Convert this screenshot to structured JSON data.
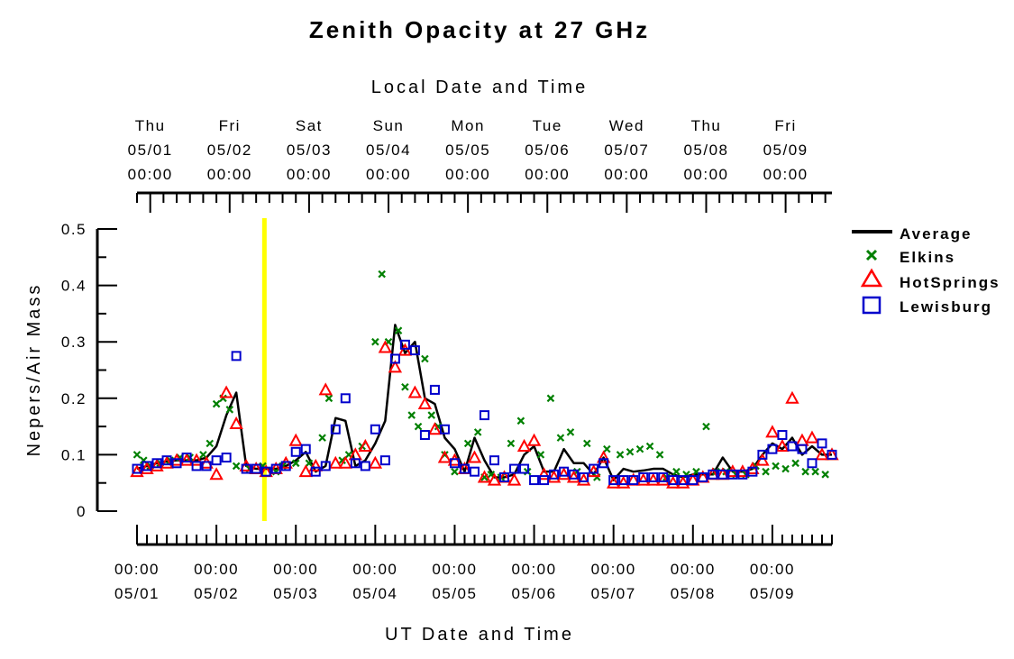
{
  "chart_data": {
    "type": "line",
    "title": "Zenith Opacity at 27 GHz",
    "top_axis_label": "Local Date and Time",
    "xlabel": "UT Date and Time",
    "ylabel": "Nepers/Air Mass",
    "ylim": [
      0,
      0.5
    ],
    "y_ticks": [
      "0",
      "0.1",
      "0.2",
      "0.3",
      "0.4",
      "0.5"
    ],
    "x_range_hours": [
      0,
      210
    ],
    "top_ticks": [
      {
        "hour": 4,
        "day": "Thu",
        "date": "05/01",
        "time": "00:00"
      },
      {
        "hour": 28,
        "day": "Fri",
        "date": "05/02",
        "time": "00:00"
      },
      {
        "hour": 52,
        "day": "Sat",
        "date": "05/03",
        "time": "00:00"
      },
      {
        "hour": 76,
        "day": "Sun",
        "date": "05/04",
        "time": "00:00"
      },
      {
        "hour": 100,
        "day": "Mon",
        "date": "05/05",
        "time": "00:00"
      },
      {
        "hour": 124,
        "day": "Tue",
        "date": "05/06",
        "time": "00:00"
      },
      {
        "hour": 148,
        "day": "Wed",
        "date": "05/07",
        "time": "00:00"
      },
      {
        "hour": 172,
        "day": "Thu",
        "date": "05/08",
        "time": "00:00"
      },
      {
        "hour": 196,
        "day": "Fri",
        "date": "05/09",
        "time": "00:00"
      }
    ],
    "bottom_ticks": [
      {
        "hour": 0,
        "time": "00:00",
        "date": "05/01"
      },
      {
        "hour": 24,
        "time": "00:00",
        "date": "05/02"
      },
      {
        "hour": 48,
        "time": "00:00",
        "date": "05/03"
      },
      {
        "hour": 72,
        "time": "00:00",
        "date": "05/04"
      },
      {
        "hour": 96,
        "time": "00:00",
        "date": "05/05"
      },
      {
        "hour": 120,
        "time": "00:00",
        "date": "05/06"
      },
      {
        "hour": 144,
        "time": "00:00",
        "date": "05/07"
      },
      {
        "hour": 168,
        "time": "00:00",
        "date": "05/08"
      },
      {
        "hour": 192,
        "time": "00:00",
        "date": "05/09"
      }
    ],
    "marker_line_hour": 38.5,
    "legend_position": "right",
    "colors": {
      "average": "#000000",
      "elkins": "#008000",
      "hotsprings": "#ff0000",
      "lewisburg": "#0000cc",
      "marker": "#ffff00"
    },
    "series": [
      {
        "name": "Average",
        "style": "line",
        "x": [
          0,
          3,
          6,
          9,
          12,
          15,
          18,
          21,
          24,
          27,
          30,
          33,
          36,
          39,
          42,
          45,
          48,
          51,
          54,
          57,
          60,
          63,
          66,
          69,
          72,
          75,
          78,
          81,
          84,
          87,
          90,
          93,
          96,
          99,
          102,
          105,
          108,
          111,
          114,
          117,
          120,
          123,
          126,
          129,
          132,
          135,
          138,
          141,
          144,
          147,
          150,
          153,
          156,
          159,
          162,
          165,
          168,
          171,
          174,
          177,
          180,
          183,
          186,
          189,
          192,
          195,
          198,
          201,
          204,
          207,
          210
        ],
        "y": [
          0.075,
          0.08,
          0.085,
          0.088,
          0.09,
          0.09,
          0.09,
          0.095,
          0.115,
          0.17,
          0.21,
          0.08,
          0.075,
          0.075,
          0.075,
          0.08,
          0.09,
          0.105,
          0.07,
          0.08,
          0.165,
          0.16,
          0.08,
          0.09,
          0.12,
          0.16,
          0.33,
          0.28,
          0.3,
          0.2,
          0.19,
          0.13,
          0.11,
          0.07,
          0.13,
          0.09,
          0.06,
          0.06,
          0.065,
          0.1,
          0.115,
          0.07,
          0.07,
          0.11,
          0.085,
          0.085,
          0.065,
          0.095,
          0.055,
          0.075,
          0.07,
          0.072,
          0.075,
          0.075,
          0.065,
          0.06,
          0.065,
          0.065,
          0.065,
          0.095,
          0.07,
          0.07,
          0.075,
          0.1,
          0.12,
          0.11,
          0.13,
          0.1,
          0.115,
          0.1,
          0.1
        ]
      },
      {
        "name": "Elkins",
        "style": "x",
        "x": [
          0,
          2,
          4,
          7,
          10,
          13,
          16,
          20,
          22,
          24,
          26,
          28,
          30,
          34,
          38,
          42,
          44,
          48,
          52,
          56,
          58,
          62,
          64,
          68,
          72,
          74,
          76,
          79,
          81,
          83,
          85,
          87,
          89,
          91,
          93,
          96,
          100,
          103,
          105,
          107,
          110,
          113,
          116,
          118,
          122,
          125,
          128,
          131,
          133,
          136,
          139,
          142,
          146,
          149,
          152,
          155,
          158,
          160,
          163,
          166,
          169,
          172,
          175,
          178,
          181,
          184,
          187,
          190,
          193,
          196,
          199,
          202,
          205,
          208
        ],
        "y": [
          0.1,
          0.09,
          0.08,
          0.085,
          0.09,
          0.095,
          0.095,
          0.1,
          0.12,
          0.19,
          0.2,
          0.18,
          0.08,
          0.075,
          0.08,
          0.07,
          0.08,
          0.085,
          0.085,
          0.13,
          0.2,
          0.09,
          0.1,
          0.115,
          0.3,
          0.42,
          0.3,
          0.32,
          0.22,
          0.17,
          0.15,
          0.27,
          0.17,
          0.15,
          0.1,
          0.07,
          0.12,
          0.14,
          0.06,
          0.065,
          0.06,
          0.12,
          0.16,
          0.07,
          0.1,
          0.2,
          0.13,
          0.14,
          0.07,
          0.12,
          0.06,
          0.11,
          0.1,
          0.105,
          0.11,
          0.115,
          0.1,
          0.06,
          0.07,
          0.065,
          0.07,
          0.15,
          0.07,
          0.07,
          0.065,
          0.065,
          0.08,
          0.07,
          0.08,
          0.075,
          0.085,
          0.07,
          0.07,
          0.065
        ]
      },
      {
        "name": "HotSprings",
        "style": "triangle",
        "x": [
          0,
          3,
          6,
          9,
          12,
          15,
          18,
          21,
          24,
          27,
          30,
          33,
          36,
          39,
          42,
          45,
          48,
          51,
          54,
          57,
          60,
          63,
          66,
          69,
          72,
          75,
          78,
          81,
          84,
          87,
          90,
          93,
          96,
          99,
          102,
          105,
          108,
          111,
          114,
          117,
          120,
          123,
          126,
          129,
          132,
          135,
          138,
          141,
          144,
          147,
          150,
          153,
          156,
          159,
          162,
          165,
          168,
          171,
          174,
          177,
          180,
          183,
          186,
          189,
          192,
          195,
          198,
          201,
          204,
          207,
          210
        ],
        "y": [
          0.07,
          0.075,
          0.08,
          0.085,
          0.09,
          0.09,
          0.09,
          0.085,
          0.065,
          0.21,
          0.155,
          0.08,
          0.075,
          0.07,
          0.075,
          0.085,
          0.125,
          0.07,
          0.08,
          0.215,
          0.085,
          0.085,
          0.1,
          0.115,
          0.085,
          0.29,
          0.255,
          0.285,
          0.21,
          0.19,
          0.145,
          0.095,
          0.09,
          0.075,
          0.095,
          0.06,
          0.055,
          0.06,
          0.055,
          0.115,
          0.125,
          0.065,
          0.06,
          0.065,
          0.06,
          0.055,
          0.07,
          0.095,
          0.05,
          0.05,
          0.055,
          0.055,
          0.055,
          0.055,
          0.05,
          0.05,
          0.055,
          0.06,
          0.065,
          0.065,
          0.07,
          0.07,
          0.075,
          0.09,
          0.14,
          0.115,
          0.2,
          0.125,
          0.13,
          0.1,
          0.1
        ]
      },
      {
        "name": "Lewisburg",
        "style": "square",
        "x": [
          0,
          3,
          6,
          9,
          12,
          15,
          18,
          21,
          24,
          27,
          30,
          33,
          36,
          39,
          42,
          45,
          48,
          51,
          54,
          57,
          60,
          63,
          66,
          69,
          72,
          75,
          78,
          81,
          84,
          87,
          90,
          93,
          96,
          99,
          102,
          105,
          108,
          111,
          114,
          117,
          120,
          123,
          126,
          129,
          132,
          135,
          138,
          141,
          144,
          147,
          150,
          153,
          156,
          159,
          162,
          165,
          168,
          171,
          174,
          177,
          180,
          183,
          186,
          189,
          192,
          195,
          198,
          201,
          204,
          207,
          210
        ],
        "y": [
          0.075,
          0.08,
          0.085,
          0.09,
          0.085,
          0.095,
          0.08,
          0.08,
          0.09,
          0.095,
          0.275,
          0.075,
          0.075,
          0.07,
          0.075,
          0.08,
          0.105,
          0.11,
          0.07,
          0.08,
          0.145,
          0.2,
          0.085,
          0.08,
          0.145,
          0.09,
          0.27,
          0.295,
          0.285,
          0.135,
          0.215,
          0.145,
          0.085,
          0.075,
          0.07,
          0.17,
          0.09,
          0.06,
          0.075,
          0.075,
          0.055,
          0.055,
          0.065,
          0.07,
          0.065,
          0.06,
          0.075,
          0.085,
          0.055,
          0.055,
          0.055,
          0.06,
          0.06,
          0.06,
          0.055,
          0.055,
          0.055,
          0.06,
          0.065,
          0.065,
          0.065,
          0.065,
          0.07,
          0.1,
          0.11,
          0.135,
          0.115,
          0.11,
          0.085,
          0.12,
          0.1
        ]
      }
    ]
  }
}
